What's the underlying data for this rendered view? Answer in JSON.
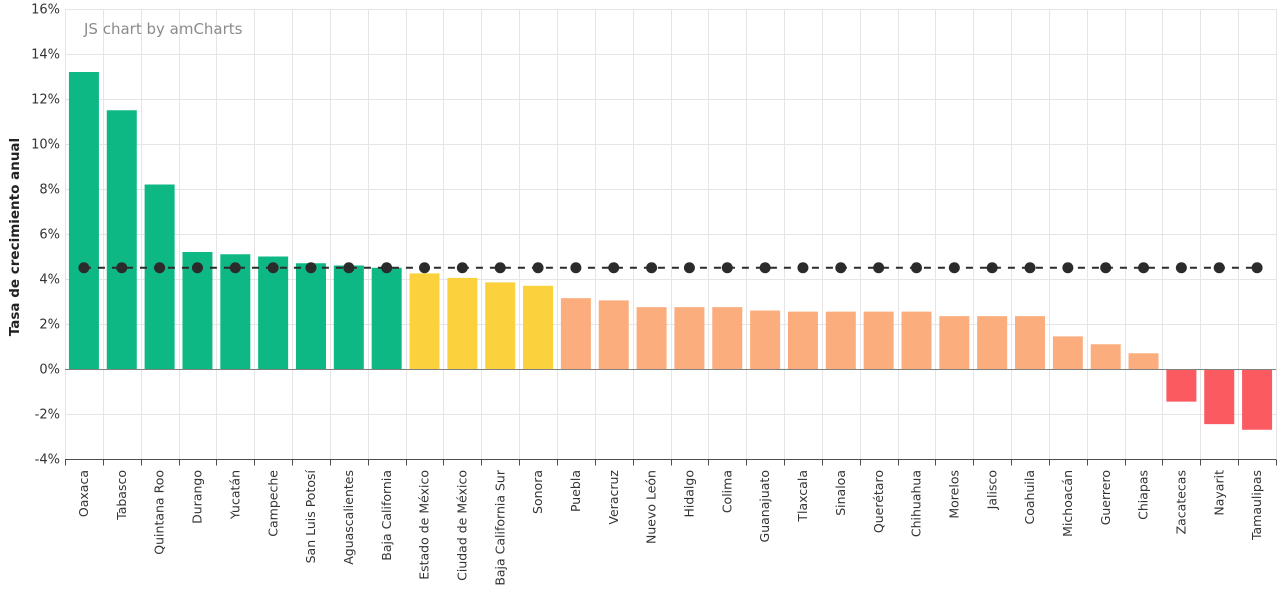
{
  "credit": "JS chart by amCharts",
  "colors": {
    "green": "#0DB884",
    "yellow": "#FBD23D",
    "orange": "#FBAD7D",
    "red": "#FA5A60",
    "reference_dot": "#2B2B2B",
    "grid": "#E5E5E5",
    "zero_line": "#808080",
    "axis": "#4D4D4D",
    "label": "#333333",
    "credit_color": "#8B8B8B"
  },
  "chart_data": {
    "type": "bar",
    "title": "",
    "xlabel": "",
    "ylabel": "Tasa de crecimiento anual",
    "ylim": [
      -4,
      16
    ],
    "ytick_step": 2,
    "ytick_suffix": "%",
    "grid": true,
    "legend": "none",
    "categories": [
      "Oaxaca",
      "Tabasco",
      "Quintana Roo",
      "Durango",
      "Yucatán",
      "Campeche",
      "San Luis Potosí",
      "Aguascalientes",
      "Baja California",
      "Estado de México",
      "Ciudad de México",
      "Baja California Sur",
      "Sonora",
      "Puebla",
      "Veracruz",
      "Nuevo León",
      "Hidalgo",
      "Colima",
      "Guanajuato",
      "Tlaxcala",
      "Sinaloa",
      "Querétaro",
      "Chihuahua",
      "Morelos",
      "Jalisco",
      "Coahuila",
      "Michoacán",
      "Guerrero",
      "Chiapas",
      "Zacatecas",
      "Nayarit",
      "Tamaulipas"
    ],
    "values": [
      13.2,
      11.5,
      8.2,
      5.2,
      5.1,
      5.0,
      4.7,
      4.6,
      4.5,
      4.25,
      4.05,
      3.85,
      3.7,
      3.15,
      3.05,
      2.75,
      2.75,
      2.75,
      2.6,
      2.55,
      2.55,
      2.55,
      2.55,
      2.35,
      2.35,
      2.35,
      1.45,
      1.1,
      0.7,
      -1.45,
      -2.45,
      -2.7
    ],
    "color_groups": [
      {
        "color": "#0DB884",
        "count": 9
      },
      {
        "color": "#FBD23D",
        "count": 4
      },
      {
        "color": "#FBAD7D",
        "count": 16
      },
      {
        "color": "#FA5A60",
        "count": 3
      }
    ],
    "reference_line": {
      "value": 4.5,
      "style": "dashed-with-dots",
      "color": "#2B2B2B"
    }
  }
}
